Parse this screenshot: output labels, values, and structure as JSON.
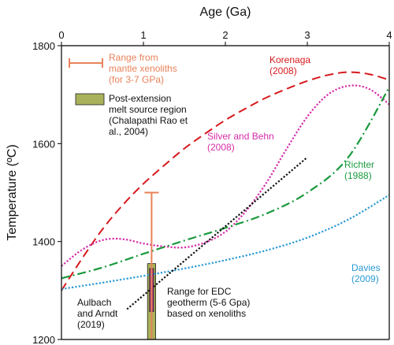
{
  "chart_data": {
    "type": "line",
    "xlabel": "Age (Ga)",
    "ylabel": "Temperature (ºC)",
    "xlim": [
      0,
      4
    ],
    "ylim": [
      1200,
      1800
    ],
    "x_ticks": [
      "0",
      "1",
      "2",
      "3",
      "4"
    ],
    "y_ticks": [
      "1200",
      "1400",
      "1600",
      "1800"
    ],
    "x_axis_position": "top",
    "grid": false,
    "series": [
      {
        "name": "Korenaga (2008)",
        "color": "#d7191c",
        "style": "dashed",
        "label_lines": [
          "Korenaga",
          "(2008)"
        ],
        "x": [
          0.0,
          0.25,
          0.5,
          0.75,
          1.0,
          1.25,
          1.5,
          1.75,
          2.0,
          2.25,
          2.5,
          2.75,
          3.0,
          3.25,
          3.5,
          3.75,
          4.0
        ],
        "y": [
          1300,
          1365,
          1425,
          1475,
          1518,
          1555,
          1590,
          1620,
          1648,
          1672,
          1694,
          1712,
          1728,
          1740,
          1746,
          1742,
          1730
        ]
      },
      {
        "name": "Silver and Behn (2008)",
        "color": "#d62ca8",
        "style": "dotted",
        "label_lines": [
          "Silver and Behn",
          "(2008)"
        ],
        "x": [
          0.0,
          0.25,
          0.5,
          0.75,
          1.0,
          1.25,
          1.5,
          1.75,
          2.0,
          2.25,
          2.5,
          2.75,
          3.0,
          3.25,
          3.5,
          3.75,
          4.0
        ],
        "y": [
          1350,
          1383,
          1403,
          1405,
          1396,
          1390,
          1388,
          1398,
          1420,
          1462,
          1520,
          1590,
          1655,
          1700,
          1718,
          1712,
          1680
        ]
      },
      {
        "name": "Richter (1988)",
        "color": "#1a9a3e",
        "style": "dashdot",
        "label_lines": [
          "Richter",
          "(1988)"
        ],
        "x": [
          0.0,
          0.5,
          1.0,
          1.5,
          2.0,
          2.5,
          3.0,
          3.5,
          4.0
        ],
        "y": [
          1325,
          1347,
          1375,
          1402,
          1428,
          1457,
          1500,
          1572,
          1715
        ]
      },
      {
        "name": "Davies (2009)",
        "color": "#2a9ad6",
        "style": "dotted",
        "label_lines": [
          "Davies",
          "(2009)"
        ],
        "x": [
          0.0,
          0.5,
          1.0,
          1.5,
          2.0,
          2.5,
          3.0,
          3.5,
          4.0
        ],
        "y": [
          1303,
          1316,
          1330,
          1345,
          1362,
          1382,
          1408,
          1445,
          1495
        ]
      },
      {
        "name": "Aulbach and Arndt (2019)",
        "color": "#111111",
        "style": "dotted",
        "label_lines": [
          "Aulbach",
          "and Arndt",
          "(2019)"
        ],
        "x": [
          0.8,
          3.0
        ],
        "y": [
          1262,
          1572
        ]
      }
    ],
    "error_bar": {
      "x": 1.1,
      "y_low": 1200,
      "y_high": 1500,
      "color": "#e8825a",
      "label_lines": [
        "Range from",
        "mantle xenoliths",
        "(for 3-7 GPa)"
      ]
    },
    "boxes": [
      {
        "name": "Post-extension melt source region",
        "x_low": 1.05,
        "x_high": 1.15,
        "y_low": 1200,
        "y_high": 1355,
        "color": "#a9b25a",
        "label_lines": [
          "Post-extension",
          "melt source region",
          "(Chalapathi Rao et",
          "al., 2004)"
        ]
      },
      {
        "name": "Range for EDC geotherm (5-6 Gpa) based on xenoliths",
        "x_low": 1.075,
        "x_high": 1.125,
        "y_low": 1257,
        "y_high": 1345,
        "color": "#a0307a",
        "label_lines": [
          "Range for EDC",
          "geotherm (5-6 Gpa)",
          "based on xenoliths"
        ]
      }
    ]
  }
}
